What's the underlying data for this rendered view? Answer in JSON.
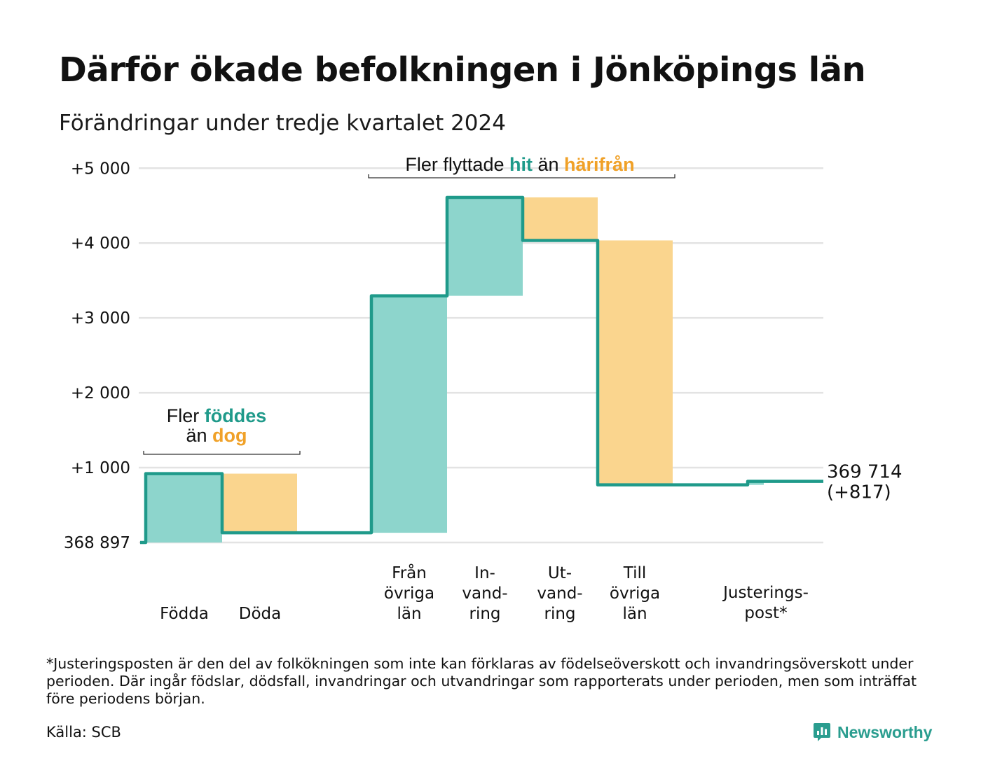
{
  "title": "Därför ökade befolkningen i Jönköpings län",
  "subtitle": "Förändringar under tredje kvartalet 2024",
  "chart_data": {
    "type": "waterfall",
    "base_label": "368 897",
    "yticks": [
      {
        "value": 0,
        "label": "368 897"
      },
      {
        "value": 1000,
        "label": "+1 000"
      },
      {
        "value": 2000,
        "label": "+2 000"
      },
      {
        "value": 3000,
        "label": "+3 000"
      },
      {
        "value": 4000,
        "label": "+4 000"
      },
      {
        "value": 5000,
        "label": "+5 000"
      }
    ],
    "ylim": [
      0,
      5000
    ],
    "grid": true,
    "steps": [
      {
        "lines": [
          "Födda"
        ],
        "change": 920,
        "kind": "positive"
      },
      {
        "lines": [
          "Döda"
        ],
        "change": -790,
        "kind": "negative"
      },
      {
        "lines": [
          "Från",
          "övriga",
          "län"
        ],
        "change": 3165,
        "kind": "positive"
      },
      {
        "lines": [
          "In-",
          "vand-",
          "ring"
        ],
        "change": 1315,
        "kind": "positive"
      },
      {
        "lines": [
          "Ut-",
          "vand-",
          "ring"
        ],
        "change": -575,
        "kind": "negative"
      },
      {
        "lines": [
          "Till",
          "övriga",
          "län"
        ],
        "change": -3265,
        "kind": "negative"
      },
      {
        "lines": [
          "Justerings-",
          "post*"
        ],
        "change": 47,
        "kind": "positive"
      }
    ],
    "end_label": {
      "value": "369 714",
      "change": "(+817)"
    },
    "annotations": [
      {
        "lines": [
          [
            {
              "t": "Fler ",
              "c": "plain"
            },
            {
              "t": "föddes",
              "c": "pos"
            }
          ],
          [
            {
              "t": "än ",
              "c": "plain"
            },
            {
              "t": "dog",
              "c": "neg"
            }
          ]
        ]
      },
      {
        "lines": [
          [
            {
              "t": "Fler flyttade ",
              "c": "plain"
            },
            {
              "t": "hit",
              "c": "pos"
            },
            {
              "t": " än ",
              "c": "plain"
            },
            {
              "t": "härifrån",
              "c": "neg"
            }
          ]
        ]
      }
    ],
    "colors": {
      "positive_bar": "#8dd5cc",
      "negative_bar": "#fad58e",
      "line": "#1f9a8a",
      "positive_text": "#1f9a8a",
      "negative_text": "#f0a128",
      "grid": "#e3e3e3"
    }
  },
  "footnote": "*Justeringsposten är den del av folkökningen som inte kan förklaras av födelseöverskott och invandringsöverskott under perioden. Där ingår födslar, dödsfall, invandringar och utvandringar som rapporterats under perioden, men som inträffat före periodens början.",
  "source": "Källa: SCB",
  "brand": "Newsworthy",
  "brand_icon": "newsworthy-logo-icon"
}
